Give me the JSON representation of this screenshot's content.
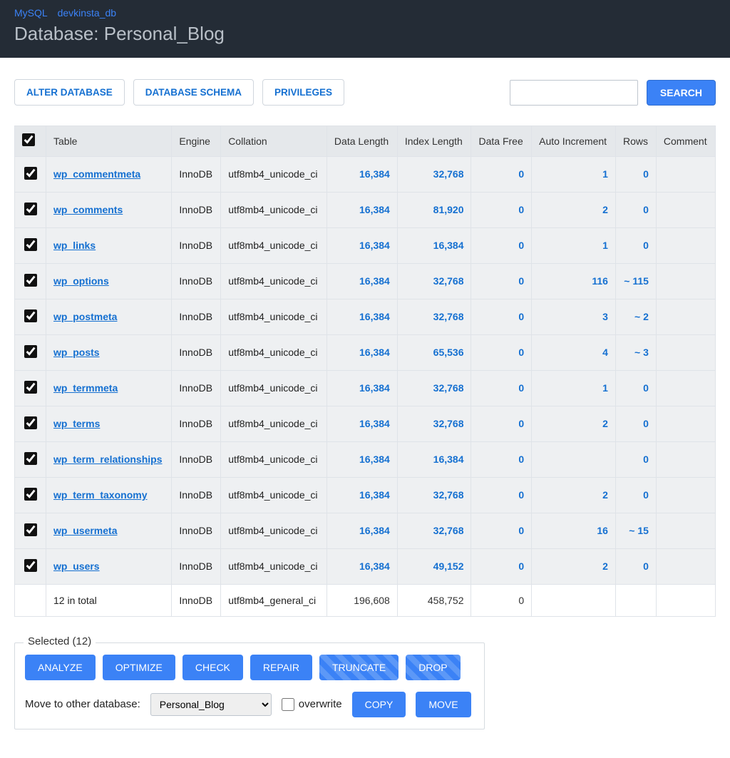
{
  "breadcrumb": {
    "driver": "MySQL",
    "connection": "devkinsta_db"
  },
  "pageTitle": "Database: Personal_Blog",
  "toolbar": {
    "alter": "Alter database",
    "schema": "Database schema",
    "privileges": "Privileges",
    "searchBtn": "Search",
    "searchPlaceholder": ""
  },
  "columns": {
    "table": "Table",
    "engine": "Engine",
    "collation": "Collation",
    "dataLength": "Data Length",
    "indexLength": "Index Length",
    "dataFree": "Data Free",
    "autoIncrement": "Auto Increment",
    "rows": "Rows",
    "comment": "Comment"
  },
  "rows": [
    {
      "name": "wp_commentmeta",
      "engine": "InnoDB",
      "collation": "utf8mb4_unicode_ci",
      "dataLength": "16,384",
      "indexLength": "32,768",
      "dataFree": "0",
      "autoIncrement": "1",
      "rowsCount": "0",
      "comment": ""
    },
    {
      "name": "wp_comments",
      "engine": "InnoDB",
      "collation": "utf8mb4_unicode_ci",
      "dataLength": "16,384",
      "indexLength": "81,920",
      "dataFree": "0",
      "autoIncrement": "2",
      "rowsCount": "0",
      "comment": ""
    },
    {
      "name": "wp_links",
      "engine": "InnoDB",
      "collation": "utf8mb4_unicode_ci",
      "dataLength": "16,384",
      "indexLength": "16,384",
      "dataFree": "0",
      "autoIncrement": "1",
      "rowsCount": "0",
      "comment": ""
    },
    {
      "name": "wp_options",
      "engine": "InnoDB",
      "collation": "utf8mb4_unicode_ci",
      "dataLength": "16,384",
      "indexLength": "32,768",
      "dataFree": "0",
      "autoIncrement": "116",
      "rowsCount": "~ 115",
      "comment": ""
    },
    {
      "name": "wp_postmeta",
      "engine": "InnoDB",
      "collation": "utf8mb4_unicode_ci",
      "dataLength": "16,384",
      "indexLength": "32,768",
      "dataFree": "0",
      "autoIncrement": "3",
      "rowsCount": "~ 2",
      "comment": ""
    },
    {
      "name": "wp_posts",
      "engine": "InnoDB",
      "collation": "utf8mb4_unicode_ci",
      "dataLength": "16,384",
      "indexLength": "65,536",
      "dataFree": "0",
      "autoIncrement": "4",
      "rowsCount": "~ 3",
      "comment": ""
    },
    {
      "name": "wp_termmeta",
      "engine": "InnoDB",
      "collation": "utf8mb4_unicode_ci",
      "dataLength": "16,384",
      "indexLength": "32,768",
      "dataFree": "0",
      "autoIncrement": "1",
      "rowsCount": "0",
      "comment": ""
    },
    {
      "name": "wp_terms",
      "engine": "InnoDB",
      "collation": "utf8mb4_unicode_ci",
      "dataLength": "16,384",
      "indexLength": "32,768",
      "dataFree": "0",
      "autoIncrement": "2",
      "rowsCount": "0",
      "comment": ""
    },
    {
      "name": "wp_term_relationships",
      "engine": "InnoDB",
      "collation": "utf8mb4_unicode_ci",
      "dataLength": "16,384",
      "indexLength": "16,384",
      "dataFree": "0",
      "autoIncrement": "",
      "rowsCount": "0",
      "comment": ""
    },
    {
      "name": "wp_term_taxonomy",
      "engine": "InnoDB",
      "collation": "utf8mb4_unicode_ci",
      "dataLength": "16,384",
      "indexLength": "32,768",
      "dataFree": "0",
      "autoIncrement": "2",
      "rowsCount": "0",
      "comment": ""
    },
    {
      "name": "wp_usermeta",
      "engine": "InnoDB",
      "collation": "utf8mb4_unicode_ci",
      "dataLength": "16,384",
      "indexLength": "32,768",
      "dataFree": "0",
      "autoIncrement": "16",
      "rowsCount": "~ 15",
      "comment": ""
    },
    {
      "name": "wp_users",
      "engine": "InnoDB",
      "collation": "utf8mb4_unicode_ci",
      "dataLength": "16,384",
      "indexLength": "49,152",
      "dataFree": "0",
      "autoIncrement": "2",
      "rowsCount": "0",
      "comment": ""
    }
  ],
  "totals": {
    "label": "12 in total",
    "engine": "InnoDB",
    "collation": "utf8mb4_general_ci",
    "dataLength": "196,608",
    "indexLength": "458,752",
    "dataFree": "0",
    "autoIncrement": "",
    "rowsCount": "",
    "comment": ""
  },
  "selected": {
    "legend": "Selected (12)",
    "analyze": "Analyze",
    "optimize": "Optimize",
    "check": "Check",
    "repair": "Repair",
    "truncate": "Truncate",
    "drop": "Drop",
    "moveLabel": "Move to other database:",
    "moveTarget": "Personal_Blog",
    "overwrite": "overwrite",
    "copy": "Copy",
    "move": "Move"
  },
  "colors": {
    "headerBg": "#242c36",
    "link": "#1570d1",
    "primary": "#3b82f6",
    "rowBg": "#eef0f2",
    "thBg": "#e5e8eb"
  }
}
